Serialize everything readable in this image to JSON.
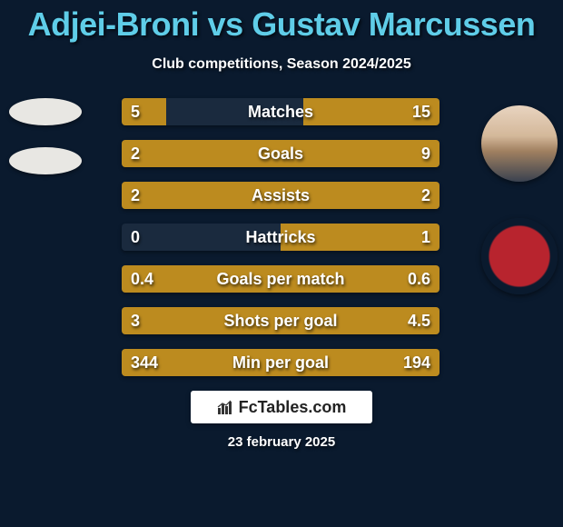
{
  "title": "Adjei-Broni vs Gustav Marcussen",
  "subtitle": "Club competitions, Season 2024/2025",
  "bar_color": "#bc8b1f",
  "bar_bg": "#1a2a3e",
  "text_color": "#ffffff",
  "title_color": "#5fcde8",
  "background": "#0a1a2e",
  "rows": [
    {
      "label": "Matches",
      "left": "5",
      "right": "15",
      "left_pct": 14,
      "right_pct": 43
    },
    {
      "label": "Goals",
      "left": "2",
      "right": "9",
      "left_pct": 18,
      "right_pct": 82
    },
    {
      "label": "Assists",
      "left": "2",
      "right": "2",
      "left_pct": 50,
      "right_pct": 50
    },
    {
      "label": "Hattricks",
      "left": "0",
      "right": "1",
      "left_pct": 0,
      "right_pct": 50
    },
    {
      "label": "Goals per match",
      "left": "0.4",
      "right": "0.6",
      "left_pct": 40,
      "right_pct": 60
    },
    {
      "label": "Shots per goal",
      "left": "3",
      "right": "4.5",
      "left_pct": 40,
      "right_pct": 60
    },
    {
      "label": "Min per goal",
      "left": "344",
      "right": "194",
      "left_pct": 64,
      "right_pct": 36
    }
  ],
  "footer_brand": "FcTables.com",
  "date": "23 february 2025"
}
